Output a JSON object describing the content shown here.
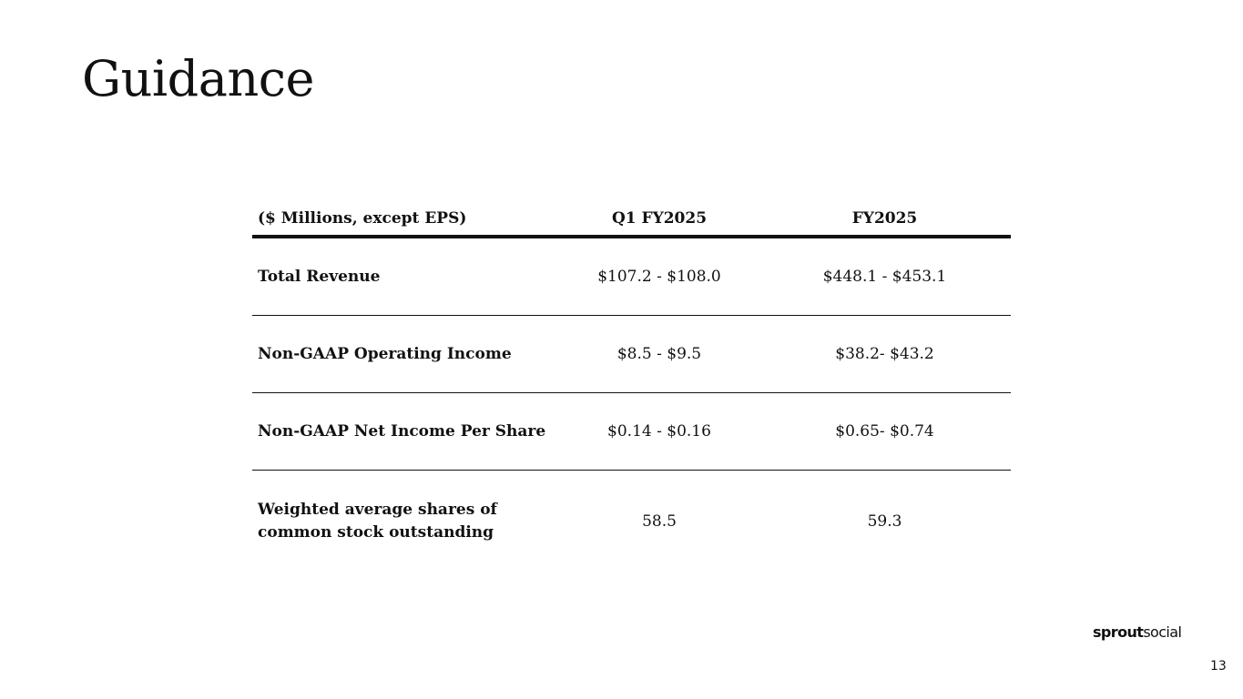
{
  "slide": {
    "title": "Guidance",
    "page_number": "13"
  },
  "brand": {
    "part1": "sprout",
    "part2": "social"
  },
  "table": {
    "headers": [
      "($ Millions, except EPS)",
      "Q1 FY2025",
      "FY2025"
    ],
    "rows": [
      {
        "label": "Total Revenue",
        "q1": "$107.2 - $108.0",
        "fy": "$448.1 - $453.1"
      },
      {
        "label": "Non-GAAP Operating Income",
        "q1": "$8.5 - $9.5",
        "fy": "$38.2- $43.2"
      },
      {
        "label": "Non-GAAP Net Income Per Share",
        "q1": "$0.14 - $0.16",
        "fy": "$0.65- $0.74"
      },
      {
        "label_line1": "Weighted average shares of",
        "label_line2": "common stock outstanding",
        "q1": "58.5",
        "fy": "59.3"
      }
    ]
  }
}
